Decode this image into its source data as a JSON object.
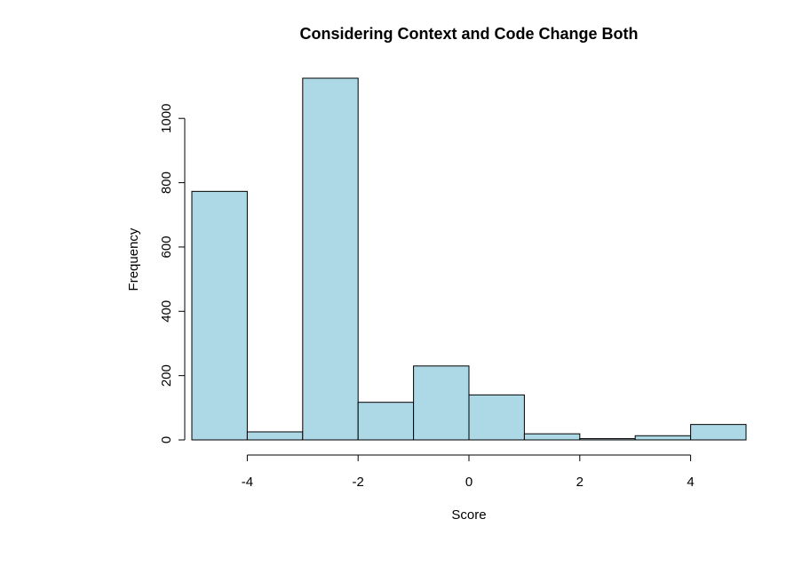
{
  "chart_data": {
    "type": "bar",
    "title": "Considering Context and Code Change Both",
    "xlabel": "Score",
    "ylabel": "Frequency",
    "bar_color": "#add8e6",
    "xlim": [
      -5,
      5
    ],
    "ylim": [
      0,
      1125
    ],
    "x_ticks": [
      -4,
      -2,
      0,
      2,
      4
    ],
    "y_ticks": [
      0,
      200,
      400,
      600,
      800,
      1000
    ],
    "bins": [
      {
        "x0": -5,
        "x1": -4,
        "count": 773
      },
      {
        "x0": -4,
        "x1": -3,
        "count": 25
      },
      {
        "x0": -3,
        "x1": -2,
        "count": 1125
      },
      {
        "x0": -2,
        "x1": -1,
        "count": 117
      },
      {
        "x0": -1,
        "x1": 0,
        "count": 230
      },
      {
        "x0": 0,
        "x1": 1,
        "count": 140
      },
      {
        "x0": 1,
        "x1": 2,
        "count": 19
      },
      {
        "x0": 2,
        "x1": 3,
        "count": 4
      },
      {
        "x0": 3,
        "x1": 4,
        "count": 13
      },
      {
        "x0": 4,
        "x1": 5,
        "count": 48
      }
    ],
    "grid": false,
    "legend": "none"
  }
}
